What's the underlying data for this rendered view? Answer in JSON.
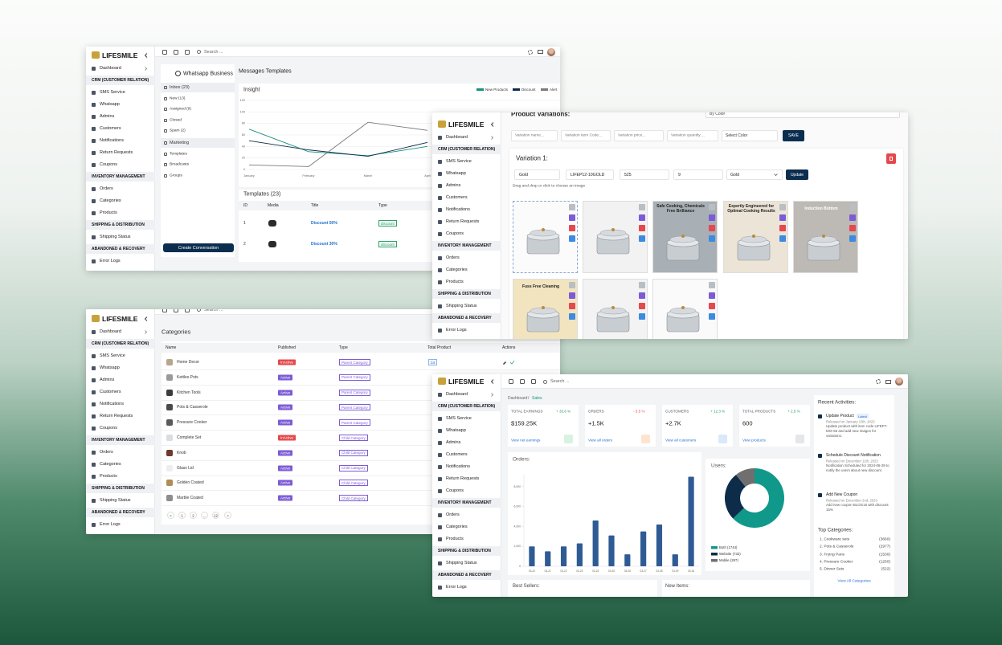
{
  "sidebar": {
    "brand": "LIFESMILE",
    "dashboard": "Dashboard",
    "sections": [
      {
        "title": "CRM (CUSTOMER RELATION)",
        "items": [
          "SMS Service",
          "Whatsapp",
          "Admins",
          "Customers",
          "Notifications",
          "Return Requests",
          "Coupons"
        ]
      },
      {
        "title": "INVENTORY MANAGEMENT",
        "items": [
          "Orders",
          "Categories",
          "Products"
        ]
      },
      {
        "title": "SHIPPING & DISTRIBUTION",
        "items": [
          "Shipping Status"
        ]
      },
      {
        "title": "ABANDONED & RECOVERY",
        "items": [
          "Error Logs"
        ]
      }
    ]
  },
  "search_placeholder": "Search ...",
  "messages": {
    "panel_title": "Whatsapp Business",
    "folders": [
      "Inbox (23)",
      "New (13)",
      "Assigned (9)",
      "Closed",
      "Spam (2)",
      "Marketing",
      "Templates",
      "Broadcasts",
      "Groups"
    ],
    "button": "Create Conversation",
    "page_title": "Messages Templates",
    "insight": {
      "type": "line",
      "title": "Insight",
      "categories": [
        "January",
        "February",
        "March",
        "April"
      ],
      "ylim": [
        0,
        120
      ],
      "yticks": [
        0,
        20,
        40,
        60,
        80,
        100,
        120
      ],
      "series": [
        {
          "name": "New Products",
          "color": "#16917f",
          "values": [
            70,
            31,
            24,
            40
          ]
        },
        {
          "name": "Discount",
          "color": "#0d2c4a",
          "values": [
            50,
            34,
            23,
            47
          ]
        },
        {
          "name": "Alert",
          "color": "#7a7a7a",
          "values": [
            8,
            5,
            82,
            68
          ]
        }
      ]
    },
    "templates": {
      "title": "Templates (23)",
      "columns": [
        "ID",
        "Media",
        "Title",
        "Type"
      ],
      "rows": [
        {
          "id": 1,
          "title": "Discount 50%",
          "type": "discount"
        },
        {
          "id": 2,
          "title": "Discount 30%",
          "type": "discount"
        }
      ]
    }
  },
  "product_variations": {
    "title": "Product Variations:",
    "variation_by": "By Color",
    "new_variation": {
      "placeholders": [
        "Variation name...",
        "Variation Item Code...",
        "Variation price...",
        "Variation quantity ..."
      ],
      "color_select": "Select Color",
      "save": "SAVE"
    },
    "variation": {
      "title": "Variation 1:",
      "name": "Gold",
      "item_code": "LIFEP12-10GOLD",
      "price": 525,
      "quantity": 9,
      "color": "Gold",
      "update": "Update"
    },
    "dropzone": "Drag and drop or click to choose an image",
    "image_captions": [
      "Safe Cooking, Chemicals Free Brilliance",
      "Expertly Engineered for Optimal Cooking Results",
      "Induction Bottom",
      "Fuss Free Cleaning"
    ]
  },
  "categories": {
    "title": "Categories",
    "columns": [
      "Name",
      "Published",
      "Type",
      "Total Product",
      "Actions"
    ],
    "published_colors": {
      "Active": "#7c5cd6",
      "InActive": "#e5484d"
    },
    "rows": [
      {
        "name": "Home Decor",
        "published": "InActive",
        "type": "Parent Category",
        "total_product": 14
      },
      {
        "name": "Kettles Pots",
        "published": "Active",
        "type": "Parent Category"
      },
      {
        "name": "Kitchen Tools",
        "published": "Active",
        "type": "Parent Category"
      },
      {
        "name": "Pots & Casserole",
        "published": "Active",
        "type": "Parent Category"
      },
      {
        "name": "Pressure Cooker",
        "published": "Active",
        "type": "Parent Category"
      },
      {
        "name": "Complete Set",
        "published": "InActive",
        "type": "Child Category"
      },
      {
        "name": "Knob",
        "published": "Active",
        "type": "Child Category"
      },
      {
        "name": "Glass Lid",
        "published": "Active",
        "type": "Child Category"
      },
      {
        "name": "Golden Coated",
        "published": "Active",
        "type": "Child Category"
      },
      {
        "name": "Marble Coated",
        "published": "Active",
        "type": "Child Category"
      }
    ],
    "pagination": [
      "«",
      "1",
      "2",
      "...",
      "12",
      "»"
    ]
  },
  "dashboard": {
    "breadcrumb": [
      "Dashboard",
      "Sales"
    ],
    "breadcrumb_separator": "/",
    "kpis": [
      {
        "label": "TOTAL EARNINGS",
        "change": "+ 33.6 %",
        "color": "#1a9b6c",
        "value": "$159.25K",
        "link": "View net earnings"
      },
      {
        "label": "ORDERS",
        "change": "- 5.5 %",
        "color": "#e5484d",
        "value": "+1.5K",
        "link": "View all orders"
      },
      {
        "label": "CUSTOMERS",
        "change": "+ 12.3 %",
        "color": "#1a9b6c",
        "value": "+2.7K",
        "link": "View all customers"
      },
      {
        "label": "TOTAL PRODUCTS",
        "change": "+ 2.5 %",
        "color": "#1a9b6c",
        "value": "600",
        "link": "View products"
      }
    ],
    "orders_chart": {
      "type": "bar",
      "title": "Orders:",
      "categories": [
        "03-20",
        "03-21",
        "03-22",
        "03-23",
        "03-24",
        "03-25",
        "03-26",
        "03-27",
        "03-28",
        "03-29",
        "03-30"
      ],
      "values": [
        2000,
        1500,
        2000,
        2300,
        4600,
        3100,
        1200,
        3500,
        4200,
        1200,
        9000
      ],
      "color": "#2f5b94",
      "ylim": [
        0,
        9200
      ],
      "yticks": [
        0,
        {
          "value": 2000,
          "label": "2,000"
        },
        {
          "value": 4000,
          "label": "4,000"
        },
        {
          "value": 6000,
          "label": "6,000"
        },
        {
          "value": 8000,
          "label": "8,000"
        }
      ]
    },
    "users_chart": {
      "type": "pie",
      "title": "Users:",
      "values": [
        1744,
        732,
        297
      ],
      "value_labels": [
        "Both (1744)",
        "Website (732)",
        "Mobile (297)"
      ],
      "colors": [
        "#10998a",
        "#0d2c4a",
        "#6f6f6f"
      ]
    },
    "recent_activities": {
      "title": "Recent Activities:",
      "items": [
        {
          "title": "Update Product",
          "badge": "Latest",
          "date": "Released on January 13th, 2023",
          "text": "Update product with item code LIFEP7-MIX-55 and add new images for variations."
        },
        {
          "title": "Schedule Discount Notification",
          "date": "Released on December 11th, 2023",
          "text": "Notification Scheduled for 2024-06-29 to notify the users about new discount"
        },
        {
          "title": "Add New Coupon",
          "date": "Released on December 2nd, 2023",
          "text": "Add new coupon BLOG15 with discount 15%"
        }
      ]
    },
    "top_categories": {
      "title": "Top Categories:",
      "items": [
        {
          "name": "1. Cookware sets",
          "count": "(3660)"
        },
        {
          "name": "2. Pots & Casserole",
          "count": "(2977)"
        },
        {
          "name": "3. Frying Pans",
          "count": "(1530)"
        },
        {
          "name": "4. Pressure Cooker",
          "count": "(1250)"
        },
        {
          "name": "5. Dinner Sets",
          "count": "(522)"
        }
      ],
      "link": "View All Categories"
    },
    "best_sellers": "Best Sellers:",
    "new_items": "New Items:"
  }
}
